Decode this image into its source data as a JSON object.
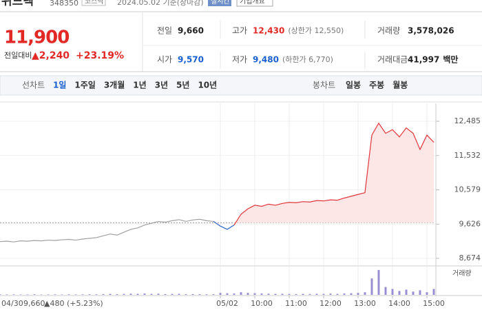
{
  "header": {
    "name": "위드텍",
    "code": "348350",
    "market": "코스닥",
    "date": "2024.05.02 기준(장마감)",
    "realtime": "실시간",
    "overview": "기업개요"
  },
  "quote": {
    "price": "11,900",
    "change_label": "전일대비",
    "change": "▲2,240",
    "rate": "+23.19%"
  },
  "stats": [
    {
      "label": "전일",
      "value": "9,660"
    },
    {
      "label": "고가",
      "value": "12,430",
      "note": "(상한가 12,550)"
    },
    {
      "label": "거래량",
      "value": "3,578,026"
    },
    {
      "label": "시가",
      "value": "9,570"
    },
    {
      "label": "저가",
      "value": "9,480",
      "note": "(하한가 6,770)"
    },
    {
      "label": "거래대금",
      "value": "41,997",
      "note": "백만"
    }
  ],
  "tabs": {
    "line_label": "선차트",
    "periods": [
      "1일",
      "1주일",
      "3개월",
      "1년",
      "3년",
      "5년",
      "10년"
    ],
    "candle_label": "봉차트",
    "candles": [
      "일봉",
      "주봉",
      "월봉"
    ]
  },
  "hover": {
    "date": "04/30",
    "price": "9,660",
    "change": "▲480 (+5.23%)"
  },
  "chart_data": {
    "type": "line",
    "x": [
      0,
      1,
      2,
      3,
      4,
      5,
      6,
      7,
      8,
      9,
      10,
      11,
      12,
      13,
      14,
      15,
      16,
      17,
      18,
      19,
      20,
      21,
      22,
      23,
      24,
      25,
      26,
      27,
      28,
      29,
      30,
      31,
      32,
      33,
      34,
      35,
      36,
      37,
      38,
      39,
      40,
      41,
      42,
      43,
      44,
      45,
      46,
      47,
      48,
      49,
      50,
      51,
      52,
      53,
      54,
      55,
      56,
      57,
      58,
      59,
      60,
      61,
      62,
      63
    ],
    "series": [
      {
        "color": "#a0a0a0",
        "values": [
          9140,
          9150,
          9130,
          9160,
          9150,
          9170,
          9160,
          9180,
          9170,
          9190,
          9200,
          9180,
          9210,
          9230,
          9250,
          9300,
          9350,
          9320,
          9400,
          9480,
          9520,
          9600,
          9650,
          9700,
          9680,
          9720,
          9750,
          9700,
          9740,
          9760,
          9720,
          9700,
          null,
          null,
          null,
          null,
          null,
          null,
          null,
          null,
          null,
          null,
          null,
          null,
          null,
          null,
          null,
          null,
          null,
          null,
          null,
          null,
          null,
          null,
          null,
          null,
          null,
          null,
          null,
          null,
          null,
          null,
          null,
          null
        ]
      },
      {
        "color": "#2a62c9",
        "values": [
          null,
          null,
          null,
          null,
          null,
          null,
          null,
          null,
          null,
          null,
          null,
          null,
          null,
          null,
          null,
          null,
          null,
          null,
          null,
          null,
          null,
          null,
          null,
          null,
          null,
          null,
          null,
          null,
          null,
          null,
          null,
          9700,
          9570,
          9480,
          9600,
          null,
          null,
          null,
          null,
          null,
          null,
          null,
          null,
          null,
          null,
          null,
          null,
          null,
          null,
          null,
          null,
          null,
          null,
          null,
          null,
          null,
          null,
          null,
          null,
          null,
          null,
          null,
          null,
          null
        ]
      },
      {
        "color": "#e0343a",
        "fill": "#fde6e6",
        "values": [
          null,
          null,
          null,
          null,
          null,
          null,
          null,
          null,
          null,
          null,
          null,
          null,
          null,
          null,
          null,
          null,
          null,
          null,
          null,
          null,
          null,
          null,
          null,
          null,
          null,
          null,
          null,
          null,
          null,
          null,
          null,
          null,
          null,
          null,
          9600,
          9900,
          10050,
          10150,
          10120,
          10180,
          10150,
          10200,
          10230,
          10220,
          10250,
          10240,
          10280,
          10270,
          10300,
          10290,
          10350,
          10400,
          10450,
          10500,
          12100,
          12430,
          12150,
          12250,
          12050,
          12300,
          12150,
          11700,
          12100,
          11900
        ]
      }
    ],
    "reference_line": 9660,
    "xlim": [
      0,
      63
    ],
    "xticks": [
      {
        "value": 32,
        "label": "05/02"
      },
      {
        "value": 37,
        "label": "10:00"
      },
      {
        "value": 42,
        "label": "11:00"
      },
      {
        "value": 47,
        "label": "12:00"
      },
      {
        "value": 52,
        "label": "13:00"
      },
      {
        "value": 57,
        "label": "14:00"
      },
      {
        "value": 62,
        "label": "15:00"
      }
    ],
    "ylim": [
      8674,
      12485
    ],
    "yticks": [
      {
        "value": 8674,
        "label": "8,674"
      },
      {
        "value": 9626,
        "label": "9,626"
      },
      {
        "value": 10579,
        "label": "10,579"
      },
      {
        "value": 11532,
        "label": "11,532"
      },
      {
        "value": 12485,
        "label": "12,485"
      }
    ],
    "volume_label": "거래량",
    "volume_color": "#9a8dd2",
    "volume_ylim": [
      0,
      400000
    ],
    "volume": [
      8000,
      6000,
      7000,
      5000,
      6000,
      9000,
      5000,
      6000,
      7000,
      5000,
      8000,
      6000,
      7000,
      9000,
      8000,
      12000,
      15000,
      10000,
      14000,
      18000,
      16000,
      20000,
      15000,
      18000,
      12000,
      14000,
      16000,
      10000,
      12000,
      11000,
      9000,
      10000,
      30000,
      25000,
      20000,
      40000,
      30000,
      25000,
      20000,
      18000,
      15000,
      16000,
      14000,
      12000,
      15000,
      13000,
      16000,
      14000,
      18000,
      15000,
      20000,
      25000,
      30000,
      40000,
      250000,
      380000,
      120000,
      90000,
      60000,
      80000,
      50000,
      70000,
      40000,
      90000
    ]
  }
}
